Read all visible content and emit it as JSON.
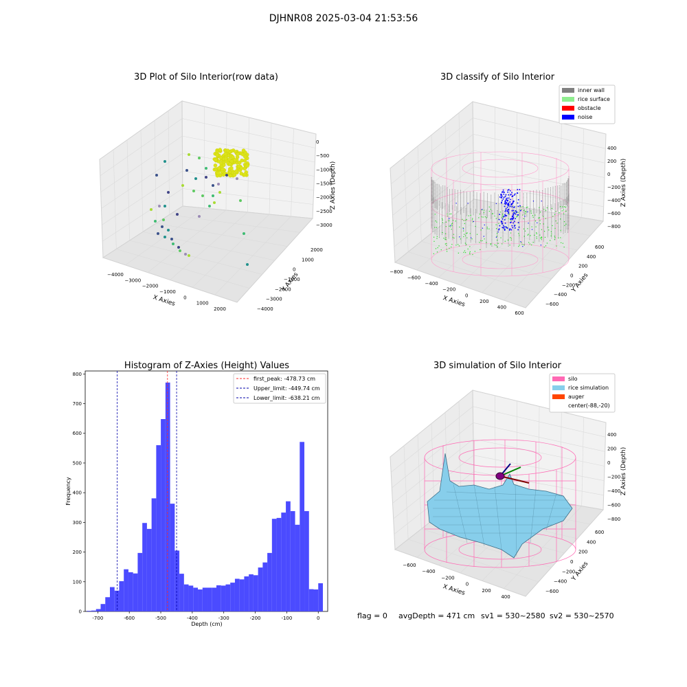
{
  "figure_title": "DJHNR08 2025-03-04 21:53:56",
  "footer": {
    "flag": "flag = 0",
    "avg": "avgDepth = 471 cm",
    "sv1": "sv1 = 530~2580",
    "sv2": "sv2 = 530~2570"
  },
  "colors": {
    "hist_bar": "#4b4bff",
    "first_peak": "#ff2a2a",
    "limit": "#0000aa",
    "inner_wall": "#808080",
    "rice_surface": "#90ee90",
    "obstacle": "#ff0000",
    "noise": "#0000ff",
    "silo": "#ff69b4",
    "rice_sim": "#87ceeb",
    "auger": "#ff4500"
  },
  "chart_data": [
    {
      "type": "scatter",
      "title": "3D Plot of Silo Interior(row data)",
      "xlabel": "X Axies",
      "ylabel": "Y Axies",
      "zlabel": "Z Axies (Depth)",
      "x_ticks": [
        "−4000",
        "−3000",
        "−2000",
        "−1000",
        "0",
        "1000",
        "2000"
      ],
      "y_ticks": [
        "−4000",
        "−3000",
        "−2000",
        "−1000",
        "0",
        "1000",
        "2000"
      ],
      "z_ticks": [
        "0",
        "−500",
        "−1000",
        "−1500",
        "−2000",
        "−2500",
        "−3000"
      ],
      "xlim": [
        -4000,
        2000
      ],
      "ylim": [
        -4000,
        2000
      ],
      "zlim": [
        -3000,
        0
      ]
    },
    {
      "type": "scatter",
      "title": "3D classify of Silo Interior",
      "xlabel": "X Axies",
      "ylabel": "Y Axies",
      "zlabel": "Z Axies (Depth)",
      "x_ticks": [
        "−800",
        "−600",
        "−400",
        "−200",
        "0",
        "200",
        "400",
        "600"
      ],
      "y_ticks": [
        "−600",
        "−400",
        "−200",
        "0",
        "200",
        "400",
        "600"
      ],
      "z_ticks": [
        "400",
        "200",
        "0",
        "−200",
        "−400",
        "−600",
        "−800"
      ],
      "legend": [
        "inner wall",
        "rice surface",
        "obstacle",
        "noise"
      ],
      "legend_position": "top-right"
    },
    {
      "type": "bar",
      "title": "Histogram of Z-Axies (Height) Values",
      "xlabel": "Depth (cm)",
      "ylabel": "Frequency",
      "xlim": [
        -740,
        30
      ],
      "ylim": [
        0,
        810
      ],
      "x_ticks": [
        -700,
        -600,
        -500,
        -400,
        -300,
        -200,
        -100,
        0
      ],
      "y_ticks": [
        0,
        100,
        200,
        300,
        400,
        500,
        600,
        700,
        800
      ],
      "bin_start": -735,
      "bin_width": 14.7,
      "values": [
        2,
        3,
        8,
        25,
        48,
        82,
        70,
        102,
        142,
        132,
        128,
        197,
        298,
        278,
        381,
        560,
        648,
        771,
        363,
        205,
        127,
        91,
        87,
        80,
        74,
        80,
        80,
        80,
        88,
        87,
        91,
        97,
        110,
        108,
        118,
        125,
        122,
        148,
        165,
        197,
        312,
        315,
        333,
        371,
        338,
        292,
        571,
        338,
        75,
        74,
        95
      ],
      "vlines": [
        {
          "label": "first_peak: -478.73 cm",
          "x": -478.73,
          "kind": "first_peak"
        },
        {
          "label": "Upper_limit: -449.74 cm",
          "x": -449.74,
          "kind": "limit"
        },
        {
          "label": "Lower_limit: -638.21 cm",
          "x": -638.21,
          "kind": "limit"
        }
      ],
      "legend_position": "top-right"
    },
    {
      "type": "surface",
      "title": "3D simulation of Silo Interior",
      "xlabel": "X Axies",
      "ylabel": "Y Axies",
      "zlabel": "Z Axies (Depth)",
      "x_ticks": [
        "−600",
        "−400",
        "−200",
        "0",
        "200",
        "400"
      ],
      "y_ticks": [
        "−600",
        "−400",
        "−200",
        "0",
        "200",
        "400",
        "600"
      ],
      "z_ticks": [
        "400",
        "200",
        "0",
        "−200",
        "−400",
        "−600",
        "−800"
      ],
      "legend": [
        "silo",
        "rice simulation",
        "auger",
        "center(-88,-20)"
      ],
      "legend_position": "top-right"
    }
  ]
}
